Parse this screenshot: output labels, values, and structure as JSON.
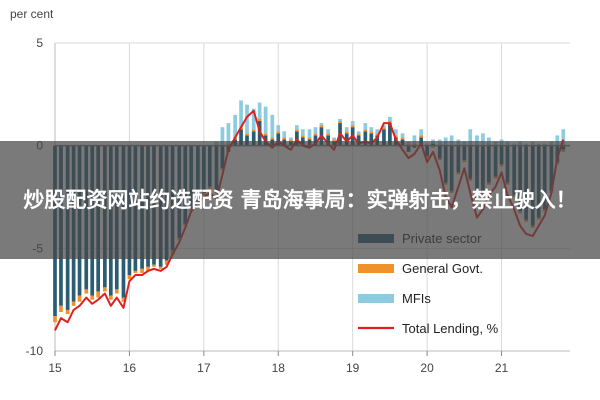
{
  "overlay": {
    "text": "炒股配资网站约选配资 青岛海事局：实弹射击，禁止驶入！"
  },
  "chart_data": {
    "type": "bar",
    "unit_label": "per cent",
    "ylim": [
      -10,
      5
    ],
    "y_ticks": [
      5,
      0,
      -5,
      -10
    ],
    "x_ticks": [
      "15",
      "16",
      "17",
      "18",
      "19",
      "20",
      "21"
    ],
    "x_tick_positions": [
      15,
      16,
      17,
      18,
      19,
      20,
      21
    ],
    "xlim": [
      15,
      21.92
    ],
    "grid": true,
    "legend_placement": "bottom-right",
    "colors": {
      "private": "#2a5c73",
      "gov": "#f0922b",
      "mfi": "#8ccbe0",
      "total": "#e02020",
      "zero": "#7a7a7a"
    },
    "series": [
      {
        "name": "Private sector",
        "type": "bar",
        "x": [
          15.0,
          15.08,
          15.17,
          15.25,
          15.33,
          15.42,
          15.5,
          15.58,
          15.67,
          15.75,
          15.83,
          15.92,
          16.0,
          16.08,
          16.17,
          16.25,
          16.33,
          16.42,
          16.5,
          16.58,
          16.67,
          16.75,
          16.83,
          16.92,
          17.0,
          17.08,
          17.17,
          17.25,
          17.33,
          17.42,
          17.5,
          17.58,
          17.67,
          17.75,
          17.83,
          17.92,
          18.0,
          18.08,
          18.17,
          18.25,
          18.33,
          18.42,
          18.5,
          18.58,
          18.67,
          18.75,
          18.83,
          18.92,
          19.0,
          19.08,
          19.17,
          19.25,
          19.33,
          19.42,
          19.5,
          19.58,
          19.67,
          19.75,
          19.83,
          19.92,
          20.0,
          20.08,
          20.17,
          20.25,
          20.33,
          20.42,
          20.5,
          20.58,
          20.67,
          20.75,
          20.83,
          20.92,
          21.0,
          21.08,
          21.17,
          21.25,
          21.33,
          21.42,
          21.5,
          21.58,
          21.67,
          21.75,
          21.83
        ],
        "values": [
          -8.3,
          -7.8,
          -8.0,
          -7.6,
          -7.3,
          -7.0,
          -7.3,
          -7.1,
          -6.9,
          -7.3,
          -7.0,
          -7.4,
          -6.3,
          -6.1,
          -6.0,
          -5.9,
          -5.8,
          -5.9,
          -5.6,
          -5.1,
          -4.5,
          -3.8,
          -3.1,
          -2.7,
          -2.3,
          -2.0,
          -2.2,
          -1.1,
          -0.3,
          0.3,
          0.8,
          0.5,
          0.7,
          1.2,
          0.5,
          0.3,
          0.6,
          0.3,
          0.2,
          0.7,
          0.4,
          0.3,
          0.5,
          0.9,
          0.5,
          0.2,
          1.1,
          0.6,
          0.9,
          0.5,
          0.7,
          0.6,
          0.5,
          0.8,
          1.1,
          0.4,
          0.3,
          -0.3,
          -0.1,
          0.4,
          -0.5,
          0.1,
          -0.6,
          -1.8,
          -2.2,
          -1.3,
          -0.7,
          -1.6,
          -2.6,
          -2.3,
          -1.8,
          -1.5,
          -0.9,
          -1.8,
          -2.4,
          -3.2,
          -3.6,
          -3.9,
          -3.5,
          -3.1,
          -2.2,
          -0.8,
          -0.2
        ]
      },
      {
        "name": "General Govt.",
        "type": "bar",
        "x": [
          15.0,
          15.08,
          15.17,
          15.25,
          15.33,
          15.42,
          15.5,
          15.58,
          15.67,
          15.75,
          15.83,
          15.92,
          16.0,
          16.08,
          16.17,
          16.25,
          16.33,
          16.42,
          16.5,
          16.58,
          16.67,
          16.75,
          16.83,
          16.92,
          17.0,
          17.08,
          17.17,
          17.25,
          17.33,
          17.42,
          17.5,
          17.58,
          17.67,
          17.75,
          17.83,
          17.92,
          18.0,
          18.08,
          18.17,
          18.25,
          18.33,
          18.42,
          18.5,
          18.58,
          18.67,
          18.75,
          18.83,
          18.92,
          19.0,
          19.08,
          19.17,
          19.25,
          19.33,
          19.42,
          19.5,
          19.58,
          19.67,
          19.75,
          19.83,
          19.92,
          20.0,
          20.08,
          20.17,
          20.25,
          20.33,
          20.42,
          20.5,
          20.58,
          20.67,
          20.75,
          20.83,
          20.92,
          21.0,
          21.08,
          21.17,
          21.25,
          21.33,
          21.42,
          21.5,
          21.58,
          21.67,
          21.75,
          21.83
        ],
        "values": [
          -0.3,
          -0.3,
          -0.2,
          -0.2,
          -0.3,
          -0.2,
          -0.2,
          -0.3,
          -0.2,
          -0.2,
          -0.2,
          -0.2,
          -0.2,
          -0.1,
          -0.2,
          -0.2,
          -0.1,
          -0.1,
          -0.2,
          -0.2,
          -0.1,
          -0.1,
          -0.1,
          -0.1,
          -0.1,
          -0.1,
          -0.1,
          -0.1,
          0.1,
          0.1,
          0.1,
          0.1,
          0.1,
          0.1,
          0.1,
          0.1,
          0.1,
          0.1,
          0.1,
          0.1,
          0.1,
          0.1,
          0.1,
          0.1,
          0.1,
          0.1,
          0.1,
          0.1,
          0.1,
          0.1,
          0.1,
          0.1,
          0.1,
          0.1,
          0.1,
          0.1,
          0.1,
          0.1,
          0.1,
          0.1,
          -0.1,
          -0.1,
          -0.1,
          -0.1,
          -0.1,
          -0.1,
          -0.1,
          -0.1,
          -0.1,
          -0.1,
          -0.1,
          -0.1,
          -0.1,
          -0.1,
          -0.1,
          -0.1,
          -0.1,
          -0.1,
          -0.1,
          -0.1,
          -0.1,
          -0.1,
          -0.1
        ]
      },
      {
        "name": "MFIs",
        "type": "bar",
        "x": [
          15.0,
          15.08,
          15.17,
          15.25,
          15.33,
          15.42,
          15.5,
          15.58,
          15.67,
          15.75,
          15.83,
          15.92,
          16.0,
          16.08,
          16.17,
          16.25,
          16.33,
          16.42,
          16.5,
          16.58,
          16.67,
          16.75,
          16.83,
          16.92,
          17.0,
          17.08,
          17.17,
          17.25,
          17.33,
          17.42,
          17.5,
          17.58,
          17.67,
          17.75,
          17.83,
          17.92,
          18.0,
          18.08,
          18.17,
          18.25,
          18.33,
          18.42,
          18.5,
          18.58,
          18.67,
          18.75,
          18.83,
          18.92,
          19.0,
          19.08,
          19.17,
          19.25,
          19.33,
          19.42,
          19.5,
          19.58,
          19.67,
          19.75,
          19.83,
          19.92,
          20.0,
          20.08,
          20.17,
          20.25,
          20.33,
          20.42,
          20.5,
          20.58,
          20.67,
          20.75,
          20.83,
          20.92,
          21.0,
          21.08,
          21.17,
          21.25,
          21.33,
          21.42,
          21.5,
          21.58,
          21.67,
          21.75,
          21.83
        ],
        "values": [
          0,
          0,
          0,
          0,
          0,
          0,
          0,
          0,
          0,
          0,
          0,
          0,
          0,
          0,
          0,
          0,
          0,
          0,
          0,
          0,
          0,
          0,
          0,
          0,
          0,
          0,
          0.2,
          0.9,
          1.0,
          1.1,
          1.3,
          1.4,
          1.0,
          0.8,
          1.3,
          1.1,
          0.3,
          0.3,
          0.1,
          0.2,
          0.3,
          0.4,
          0.3,
          0.1,
          0.2,
          0.1,
          0.1,
          0.2,
          0.2,
          0.1,
          0.3,
          0.2,
          0.2,
          0.1,
          0.2,
          0.3,
          0.2,
          0.1,
          0.4,
          0.3,
          0.1,
          0.2,
          0.3,
          0.4,
          0.5,
          0.3,
          0.2,
          0.8,
          0.5,
          0.6,
          0.4,
          0.2,
          0.3,
          0.2,
          0.1,
          0.2,
          0.1,
          0.2,
          0.1,
          0.1,
          0.2,
          0.5,
          0.8
        ]
      },
      {
        "name": "Total Lending, %",
        "type": "line",
        "x": [
          15.0,
          15.08,
          15.17,
          15.25,
          15.33,
          15.42,
          15.5,
          15.58,
          15.67,
          15.75,
          15.83,
          15.92,
          16.0,
          16.08,
          16.17,
          16.25,
          16.33,
          16.42,
          16.5,
          16.58,
          16.67,
          16.75,
          16.83,
          16.92,
          17.0,
          17.08,
          17.17,
          17.25,
          17.33,
          17.42,
          17.5,
          17.58,
          17.67,
          17.75,
          17.83,
          17.92,
          18.0,
          18.08,
          18.17,
          18.25,
          18.33,
          18.42,
          18.5,
          18.58,
          18.67,
          18.75,
          18.83,
          18.92,
          19.0,
          19.08,
          19.17,
          19.25,
          19.33,
          19.42,
          19.5,
          19.58,
          19.67,
          19.75,
          19.83,
          19.92,
          20.0,
          20.08,
          20.17,
          20.25,
          20.33,
          20.42,
          20.5,
          20.58,
          20.67,
          20.75,
          20.83,
          20.92,
          21.0,
          21.08,
          21.17,
          21.25,
          21.33,
          21.42,
          21.5,
          21.58,
          21.67,
          21.75,
          21.83
        ],
        "values": [
          -9.0,
          -8.4,
          -8.6,
          -8.0,
          -7.8,
          -7.4,
          -7.7,
          -7.5,
          -7.2,
          -7.8,
          -7.4,
          -7.9,
          -6.6,
          -6.3,
          -6.3,
          -6.1,
          -6.0,
          -6.1,
          -5.9,
          -5.3,
          -4.7,
          -4.0,
          -3.2,
          -2.8,
          -2.5,
          -2.3,
          -2.6,
          -1.4,
          -0.2,
          0.4,
          0.9,
          1.4,
          1.7,
          0.7,
          0.2,
          -0.1,
          0.2,
          0.0,
          -0.2,
          0.3,
          0.0,
          -0.1,
          0.1,
          0.5,
          0.1,
          -0.2,
          0.6,
          0.2,
          0.5,
          0.1,
          0.2,
          0.1,
          0.4,
          1.1,
          1.1,
          0.3,
          -0.2,
          -0.6,
          -0.4,
          0.1,
          -0.8,
          -0.3,
          -1.2,
          -2.5,
          -3.0,
          -2.0,
          -1.1,
          -2.3,
          -3.5,
          -3.1,
          -2.4,
          -2.0,
          -1.3,
          -2.4,
          -3.1,
          -3.9,
          -4.3,
          -4.4,
          -3.9,
          -3.4,
          -2.3,
          -0.6,
          0.3
        ]
      }
    ]
  }
}
